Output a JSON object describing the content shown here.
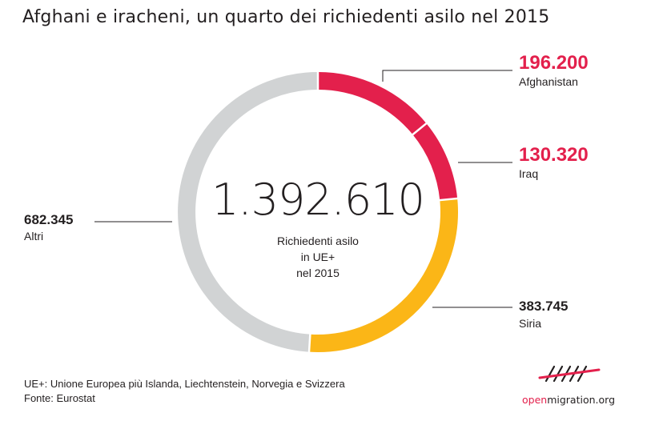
{
  "title": "Afghani e iracheni, un quarto dei richiedenti asilo nel 2015",
  "chart_data": {
    "type": "pie",
    "variant": "donut",
    "total": {
      "value": "1.392.610",
      "label_lines": [
        "Richiedenti asilo",
        "in UE+",
        "nel 2015"
      ]
    },
    "slices": [
      {
        "name": "Afghanistan",
        "value": 196200,
        "display": "196.200",
        "color": "#e3204c",
        "value_color": "#e3204c"
      },
      {
        "name": "Iraq",
        "value": 130320,
        "display": "130.320",
        "color": "#e3204c",
        "value_color": "#e3204c"
      },
      {
        "name": "Siria",
        "value": 383745,
        "display": "383.745",
        "color": "#fbb617",
        "value_color": "#231f20"
      },
      {
        "name": "Altri",
        "value": 682345,
        "display": "682.345",
        "color": "#d1d3d4",
        "value_color": "#231f20"
      }
    ]
  },
  "footnote": {
    "line1": "UE+: Unione Europea più Islanda, Liechtenstein, Norvegia e Svizzera",
    "line2": "Fonte: Eurostat"
  },
  "logo": {
    "prefix": "open",
    "suffix": "migration.org",
    "accent": "#e3204c"
  }
}
